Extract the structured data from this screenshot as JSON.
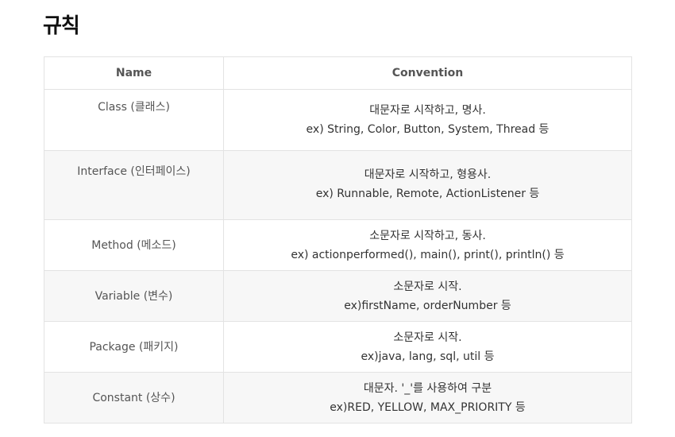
{
  "page": {
    "title": "규칙"
  },
  "table": {
    "headers": [
      "Name",
      "Convention"
    ],
    "rows": [
      {
        "name": "Class (클래스)",
        "line1": "대문자로 시작하고, 명사.",
        "line2": "ex) String, Color, Button, System, Thread 등"
      },
      {
        "name": "Interface (인터페이스)",
        "line1": "대문자로 시작하고, 형용사.",
        "line2": "ex) Runnable, Remote, ActionListener 등"
      },
      {
        "name": "Method (메소드)",
        "line1": "소문자로 시작하고, 동사.",
        "line2": "ex) actionperformed(), main(), print(), println() 등"
      },
      {
        "name": "Variable (변수)",
        "line1": "소문자로 시작.",
        "line2": "ex)firstName, orderNumber 등"
      },
      {
        "name": "Package (패키지)",
        "line1": "소문자로 시작.",
        "line2": "ex)java, lang, sql, util 등"
      },
      {
        "name": "Constant (상수)",
        "line1": "대문자. '_'를 사용하여 구분",
        "line2": "ex)RED, YELLOW, MAX_PRIORITY 등"
      }
    ]
  }
}
